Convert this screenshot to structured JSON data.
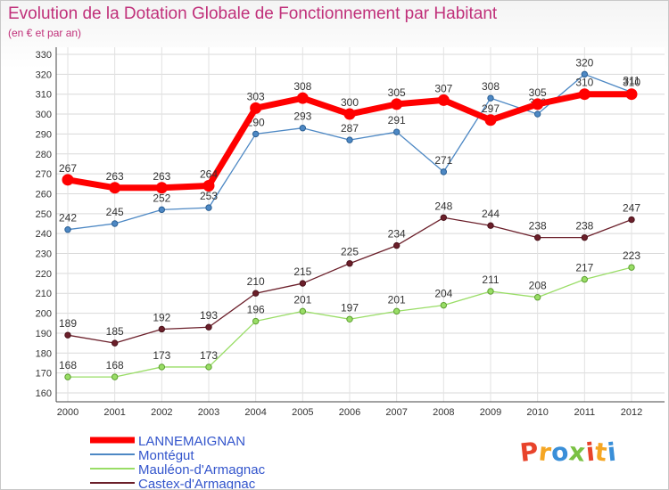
{
  "header": {
    "title": "Evolution de la Dotation Globale de Fonctionnement par Habitant",
    "subtitle": "(en € et par an)"
  },
  "logo": {
    "text": "Proxiti",
    "letters": [
      "P",
      "r",
      "o",
      "x",
      "i",
      "t",
      "i"
    ],
    "colors": [
      "#e8432b",
      "#f5a623",
      "#3a8fd8",
      "#7ac143",
      "#e8432b",
      "#f5a623",
      "#3a8fd8"
    ]
  },
  "chart_data": {
    "type": "line",
    "title": "Evolution de la Dotation Globale de Fonctionnement par Habitant",
    "subtitle": "(en € et par an)",
    "x": [
      "2000",
      "2001",
      "2002",
      "2003",
      "2004",
      "2005",
      "2006",
      "2007",
      "2008",
      "2009",
      "2010",
      "2011",
      "2012"
    ],
    "ylim": [
      160,
      330
    ],
    "yticks": [
      160,
      170,
      180,
      190,
      200,
      210,
      220,
      230,
      240,
      250,
      260,
      270,
      280,
      290,
      300,
      310,
      320,
      330
    ],
    "grid": true,
    "legend_position": "bottom-left",
    "series": [
      {
        "name": "LANNEMAIGNAN",
        "color": "#ff0000",
        "values": [
          267,
          263,
          263,
          264,
          303,
          308,
          300,
          305,
          307,
          297,
          305,
          310,
          310
        ]
      },
      {
        "name": "Montégut",
        "color": "#4d88c4",
        "values": [
          242,
          245,
          252,
          253,
          290,
          293,
          287,
          291,
          271,
          308,
          300,
          320,
          311
        ]
      },
      {
        "name": "Mauléon-d'Armagnac",
        "color": "#99dd66",
        "values": [
          168,
          168,
          173,
          173,
          196,
          201,
          197,
          201,
          204,
          211,
          208,
          217,
          223
        ]
      },
      {
        "name": "Castex-d'Armagnac",
        "color": "#6b1f2a",
        "values": [
          189,
          185,
          192,
          193,
          210,
          215,
          225,
          234,
          248,
          244,
          238,
          238,
          247
        ]
      }
    ]
  }
}
